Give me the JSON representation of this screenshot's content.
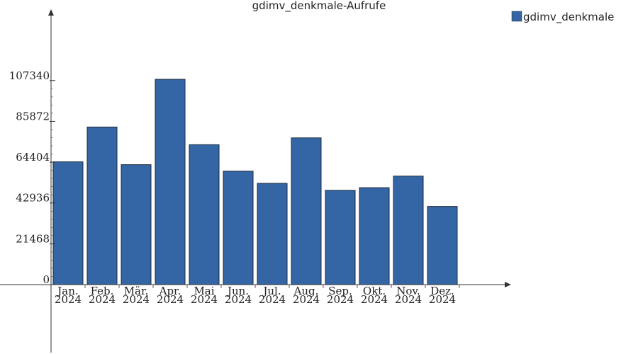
{
  "chart_data": {
    "type": "bar",
    "title": "gdimv_denkmale-Aufrufe",
    "categories": [
      [
        "Jan.",
        "2024"
      ],
      [
        "Feb.",
        "2024"
      ],
      [
        "Mär.",
        "2024"
      ],
      [
        "Apr.",
        "2024"
      ],
      [
        "Mai",
        "2024"
      ],
      [
        "Jun.",
        "2024"
      ],
      [
        "Jul.",
        "2024"
      ],
      [
        "Aug.",
        "2024"
      ],
      [
        "Sep.",
        "2024"
      ],
      [
        "Okt.",
        "2024"
      ],
      [
        "Nov.",
        "2024"
      ],
      [
        "Dez.",
        "2024"
      ]
    ],
    "series": [
      {
        "name": "gdimv_denkmale",
        "values": [
          64600,
          82900,
          63100,
          108000,
          73600,
          59700,
          53300,
          77200,
          49600,
          51000,
          57100,
          41100
        ]
      }
    ],
    "y_ticks": [
      0,
      21468,
      42936,
      64404,
      85872,
      107340
    ],
    "ylim": [
      0,
      145000
    ],
    "grid": false,
    "legend_position": "top-right",
    "colors": {
      "bar": "#3465a4",
      "bar_edge": "#1e2a3a",
      "axis": "#333333"
    }
  }
}
